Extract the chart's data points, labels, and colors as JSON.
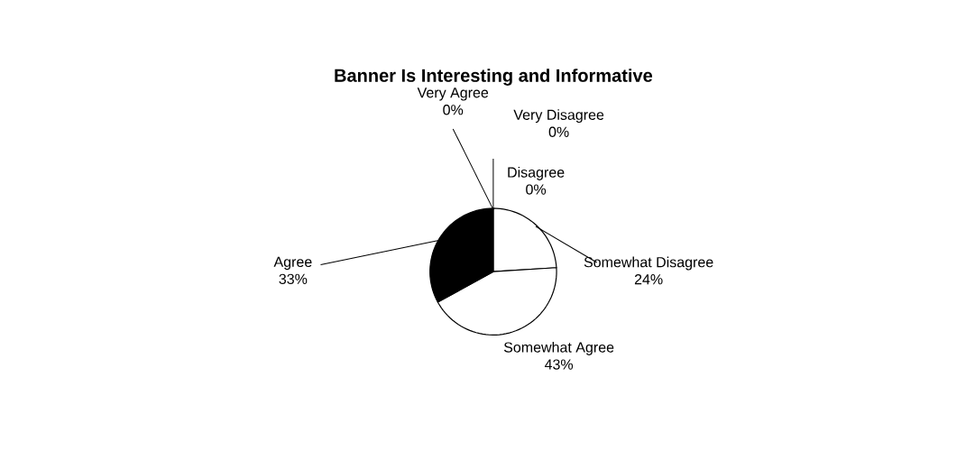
{
  "chart_data": {
    "type": "pie",
    "title": "Banner Is Interesting and Informative",
    "categories": [
      "Very Disagree",
      "Disagree",
      "Somewhat Disagree",
      "Somewhat Agree",
      "Agree",
      "Very Agree"
    ],
    "values": [
      0,
      0,
      24,
      43,
      33,
      0
    ],
    "value_labels": [
      "0%",
      "0%",
      "24%",
      "43%",
      "33%",
      "0%"
    ],
    "colors": [
      "#ffffff",
      "#ffffff",
      "#ffffff",
      "#ffffff",
      "#000000",
      "#ffffff"
    ]
  }
}
